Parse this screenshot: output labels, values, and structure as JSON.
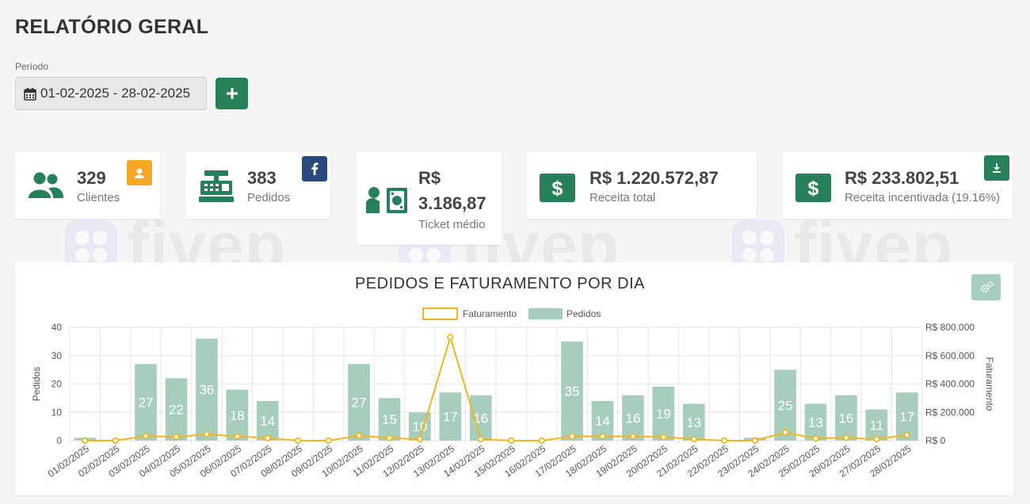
{
  "header": {
    "title": "RELATÓRIO GERAL"
  },
  "period": {
    "label": "Período",
    "value": "01-02-2025 - 28-02-2025"
  },
  "cards": {
    "clients": {
      "value": "329",
      "label": "Clientes"
    },
    "orders": {
      "value": "383",
      "label": "Pedidos"
    },
    "ticket": {
      "value_line1": "R$",
      "value_line2": "3.186,87",
      "label": "Ticket médio"
    },
    "revenue": {
      "value": "R$ 1.220.572,87",
      "label": "Receita total"
    },
    "incentive": {
      "value": "R$ 233.802,51",
      "label": "Receita incentivada (19.16%)"
    }
  },
  "watermark": {
    "text": "fivep"
  },
  "colors": {
    "primary": "#26815a",
    "bar": "#a7cdbd",
    "line": "#f2b51d",
    "orange_badge": "#f5a623",
    "blue_badge": "#2a4a7f"
  },
  "icons": {
    "calendar": "calendar-icon",
    "plus": "plus-icon",
    "users": "users-icon",
    "register": "cash-register-icon",
    "money": "money-icon",
    "dollar": "dollar-icon",
    "facebook": "facebook-icon",
    "download": "download-icon",
    "cogs": "cogs-icon"
  },
  "chart_data": {
    "type": "bar",
    "title": "PEDIDOS E FATURAMENTO POR DIA",
    "legend_position": "top",
    "categories": [
      "01/02/2025",
      "02/02/2025",
      "03/02/2025",
      "04/02/2025",
      "05/02/2025",
      "06/02/2025",
      "07/02/2025",
      "08/02/2025",
      "09/02/2025",
      "10/02/2025",
      "11/02/2025",
      "12/02/2025",
      "13/02/2025",
      "14/02/2025",
      "15/02/2025",
      "16/02/2025",
      "17/02/2025",
      "18/02/2025",
      "19/02/2025",
      "20/02/2025",
      "21/02/2025",
      "22/02/2025",
      "23/02/2025",
      "24/02/2025",
      "25/02/2025",
      "26/02/2025",
      "27/02/2025",
      "28/02/2025"
    ],
    "series": [
      {
        "name": "Pedidos",
        "type": "bar",
        "axis": "left",
        "values": [
          1,
          0,
          27,
          22,
          36,
          18,
          14,
          0,
          0,
          27,
          15,
          10,
          17,
          16,
          0,
          0,
          35,
          14,
          16,
          19,
          13,
          0,
          1,
          25,
          13,
          16,
          11,
          17
        ]
      },
      {
        "name": "Faturamento",
        "type": "line",
        "axis": "right",
        "values": [
          0,
          0,
          32000,
          26000,
          45000,
          30000,
          18000,
          0,
          0,
          35000,
          18000,
          10000,
          730000,
          10000,
          0,
          0,
          30000,
          30000,
          30000,
          25000,
          10000,
          0,
          0,
          58000,
          15000,
          20000,
          10000,
          40000
        ]
      }
    ],
    "ylabel_left": "Pedidos",
    "ylabel_right": "Faturamento",
    "ylim_left": [
      0,
      40
    ],
    "ylim_right": [
      0,
      800000
    ],
    "y_ticks_left": [
      "0",
      "10",
      "20",
      "30",
      "40"
    ],
    "y_ticks_right": [
      "R$ 0",
      "R$ 200.000",
      "R$ 400.000",
      "R$ 600.000",
      "R$ 800.000"
    ],
    "grid": true
  }
}
